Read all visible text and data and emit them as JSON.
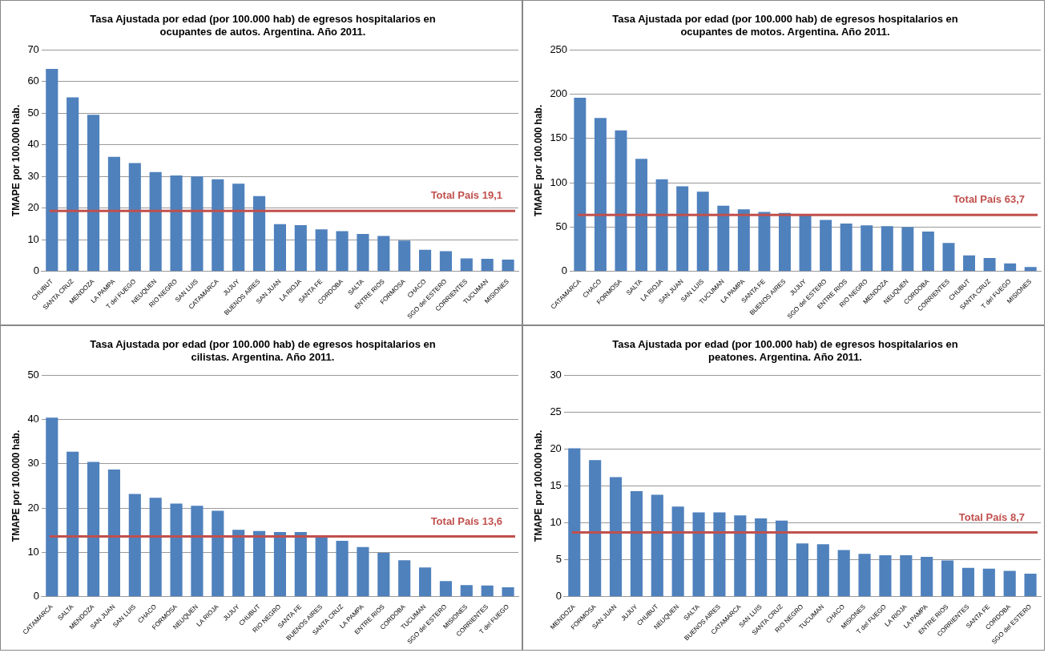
{
  "chart_data": [
    {
      "type": "bar",
      "title": "Tasa Ajustada por edad (por 100.000 hab) de egresos hospitalarios en\nocupantes de autos. Argentina. Año 2011.",
      "ylabel": "TMAPE por 100.000 hab.",
      "categories": [
        "CHUBUT",
        "SANTA CRUZ",
        "MENDOZA",
        "LA PAMPA",
        "T del FUEGO",
        "NEUQUEN",
        "RIO NEGRO",
        "SAN LUIS",
        "CATAMARCA",
        "JUJUY",
        "BUENOS AIRES",
        "SAN JUAN",
        "LA RIOJA",
        "SANTA FE",
        "CORDOBA",
        "SALTA",
        "ENTRE RIOS",
        "FORMOSA",
        "CHACO",
        "SGO del ESTERO",
        "CORRIENTES",
        "TUCUMAN",
        "MISIONES"
      ],
      "values": [
        64,
        55,
        49.5,
        36.2,
        34.2,
        31.4,
        30.3,
        30,
        29.1,
        27.7,
        23.8,
        14.9,
        14.6,
        13.3,
        12.7,
        11.8,
        11.2,
        9.7,
        6.8,
        6.4,
        4.1,
        4.0,
        3.7
      ],
      "color": "#4f81bd",
      "ylim": [
        0,
        70
      ],
      "yticks": [
        0,
        10,
        20,
        30,
        40,
        50,
        60,
        70
      ],
      "grid": "y",
      "legend": false,
      "ref_lines": [
        {
          "axis": "y",
          "value": 19.1,
          "label": "Total País 19,1",
          "color": "#c0504d"
        }
      ]
    },
    {
      "type": "bar",
      "title": "Tasa Ajustada por edad (por 100.000 hab) de egresos hospitalarios en\nocupantes de motos. Argentina. Año 2011.",
      "ylabel": "TMAPE por 100.000 hab.",
      "categories": [
        "CATAMARCA",
        "CHACO",
        "FORMOSA",
        "SALTA",
        "LA RIOJA",
        "SAN JUAN",
        "SAN LUIS",
        "TUCUMAN",
        "LA PAMPA",
        "SANTA FE",
        "BUENOS AIRES",
        "JUJUY",
        "SGO del ESTERO",
        "ENTRE RIOS",
        "RIO NEGRO",
        "MENDOZA",
        "NEUQUEN",
        "CORDOBA",
        "CORRIENTES",
        "CHUBUT",
        "SANTA CRUZ",
        "T del FUEGO",
        "MISIONES"
      ],
      "values": [
        196,
        173,
        159,
        127,
        104,
        96,
        90,
        74,
        70,
        67,
        66,
        64,
        58,
        54,
        52,
        51,
        50,
        45,
        32,
        18,
        15,
        9,
        5
      ],
      "color": "#4f81bd",
      "ylim": [
        0,
        250
      ],
      "yticks": [
        0,
        50,
        100,
        150,
        200,
        250
      ],
      "grid": "y",
      "legend": false,
      "ref_lines": [
        {
          "axis": "y",
          "value": 63.7,
          "label": "Total País 63,7",
          "color": "#c0504d"
        }
      ]
    },
    {
      "type": "bar",
      "title": "Tasa Ajustada por edad (por 100.000 hab) de egresos hospitalarios en\ncilistas. Argentina. Año 2011.",
      "ylabel": "TMAPE por 100.000 hab.",
      "categories": [
        "CATAMARCA",
        "SALTA",
        "MENDOZA",
        "SAN JUAN",
        "SAN LUIS",
        "CHACO",
        "FORMOSA",
        "NEUQUEN",
        "LA RIOJA",
        "JUJUY",
        "CHUBUT",
        "RIO NEGRO",
        "SANTA FE",
        "BUENOS AIRES",
        "SANTA CRUZ",
        "LA PAMPA",
        "ENTRE RIOS",
        "CORDOBA",
        "TUCUMAN",
        "SGO del ESTERO",
        "MISIONES",
        "CORRIENTES",
        "T del FUEGO"
      ],
      "values": [
        40.4,
        32.7,
        30.4,
        28.7,
        23.2,
        22.3,
        21.0,
        20.5,
        19.4,
        15.1,
        14.8,
        14.6,
        14.6,
        13.7,
        12.6,
        11.2,
        9.9,
        8.2,
        6.6,
        3.5,
        2.6,
        2.5,
        2.1
      ],
      "color": "#4f81bd",
      "ylim": [
        0,
        50
      ],
      "yticks": [
        0,
        10,
        20,
        30,
        40,
        50
      ],
      "grid": "y",
      "legend": false,
      "ref_lines": [
        {
          "axis": "y",
          "value": 13.6,
          "label": "Total País 13,6",
          "color": "#c0504d"
        }
      ]
    },
    {
      "type": "bar",
      "title": "Tasa Ajustada por edad (por 100.000 hab) de egresos hospitalarios en\npeatones. Argentina. Año 2011.",
      "ylabel": "TMAPE por 100.000 hab.",
      "categories": [
        "MENDOZA",
        "FORMOSA",
        "SAN JUAN",
        "JUJUY",
        "CHUBUT",
        "NEUQUEN",
        "SALTA",
        "BUENOS AIRES",
        "CATAMARCA",
        "SAN LUIS",
        "SANTA CRUZ",
        "RIO NEGRO",
        "TUCUMAN",
        "CHACO",
        "MISIONES",
        "T del FUEGO",
        "LA RIOJA",
        "LA PAMPA",
        "ENTRE RIOS",
        "CORRIENTES",
        "SANTA FE",
        "CORDOBA",
        "SGO del ESTERO"
      ],
      "values": [
        20.1,
        18.5,
        16.2,
        14.3,
        13.8,
        12.2,
        11.4,
        11.4,
        11.0,
        10.6,
        10.3,
        7.2,
        7.1,
        6.3,
        5.8,
        5.6,
        5.6,
        5.4,
        4.9,
        3.9,
        3.8,
        3.5,
        3.1
      ],
      "color": "#4f81bd",
      "ylim": [
        0,
        30
      ],
      "yticks": [
        0,
        5,
        10,
        15,
        20,
        25,
        30
      ],
      "grid": "y",
      "legend": false,
      "ref_lines": [
        {
          "axis": "y",
          "value": 8.7,
          "label": "Total País 8,7",
          "color": "#c0504d"
        }
      ]
    }
  ]
}
